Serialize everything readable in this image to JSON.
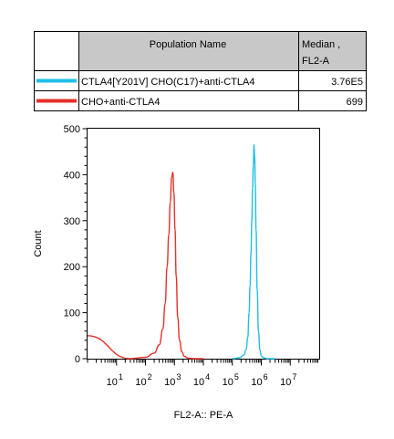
{
  "legend_table": {
    "header": {
      "name": "Population Name",
      "stat_line1": "Median ,",
      "stat_line2": "FL2-A"
    },
    "rows": [
      {
        "color": "#1fbfe8",
        "label": "CTLA4[Y201V] CHO(C17)+anti-CTLA4",
        "value": "3.76E5"
      },
      {
        "color": "#e8302a",
        "label": "CHO+anti-CTLA4",
        "value": "699"
      }
    ]
  },
  "chart_data": {
    "type": "line",
    "title": "",
    "xlabel": "FL2-A:: PE-A",
    "ylabel": "Count",
    "x_scale": "log",
    "xlim": [
      1,
      100000000
    ],
    "ylim": [
      0,
      500
    ],
    "yticks": [
      "0",
      "100",
      "200",
      "300",
      "400",
      "500"
    ],
    "xticks": [
      {
        "base": "10",
        "exp": "1"
      },
      {
        "base": "10",
        "exp": "2"
      },
      {
        "base": "10",
        "exp": "3"
      },
      {
        "base": "10",
        "exp": "4"
      },
      {
        "base": "10",
        "exp": "5"
      },
      {
        "base": "10",
        "exp": "6"
      },
      {
        "base": "10",
        "exp": "7"
      }
    ],
    "series": [
      {
        "name": "CTLA4[Y201V] CHO(C17)+anti-CTLA4",
        "color": "#1fbfe8",
        "x": [
          100000,
          180000,
          250000,
          300000,
          340000,
          380000,
          410000,
          440000,
          470000,
          500000,
          530000,
          560000,
          590000,
          620000,
          660000,
          720000,
          800000,
          900000,
          1000000,
          1200000,
          1600000,
          3000000
        ],
        "y": [
          0,
          2,
          8,
          20,
          45,
          100,
          160,
          230,
          300,
          370,
          420,
          465,
          440,
          380,
          280,
          150,
          60,
          18,
          6,
          2,
          0,
          0
        ]
      },
      {
        "name": "CHO+anti-CTLA4",
        "color": "#e8302a",
        "x": [
          1,
          30,
          100,
          200,
          300,
          400,
          480,
          560,
          640,
          720,
          800,
          880,
          960,
          1050,
          1150,
          1300,
          1500,
          1800,
          2200,
          3000,
          5000,
          10000
        ],
        "y": [
          50,
          0,
          3,
          12,
          30,
          65,
          120,
          200,
          270,
          340,
          395,
          405,
          360,
          280,
          180,
          90,
          40,
          15,
          5,
          1,
          0,
          0
        ]
      }
    ]
  }
}
